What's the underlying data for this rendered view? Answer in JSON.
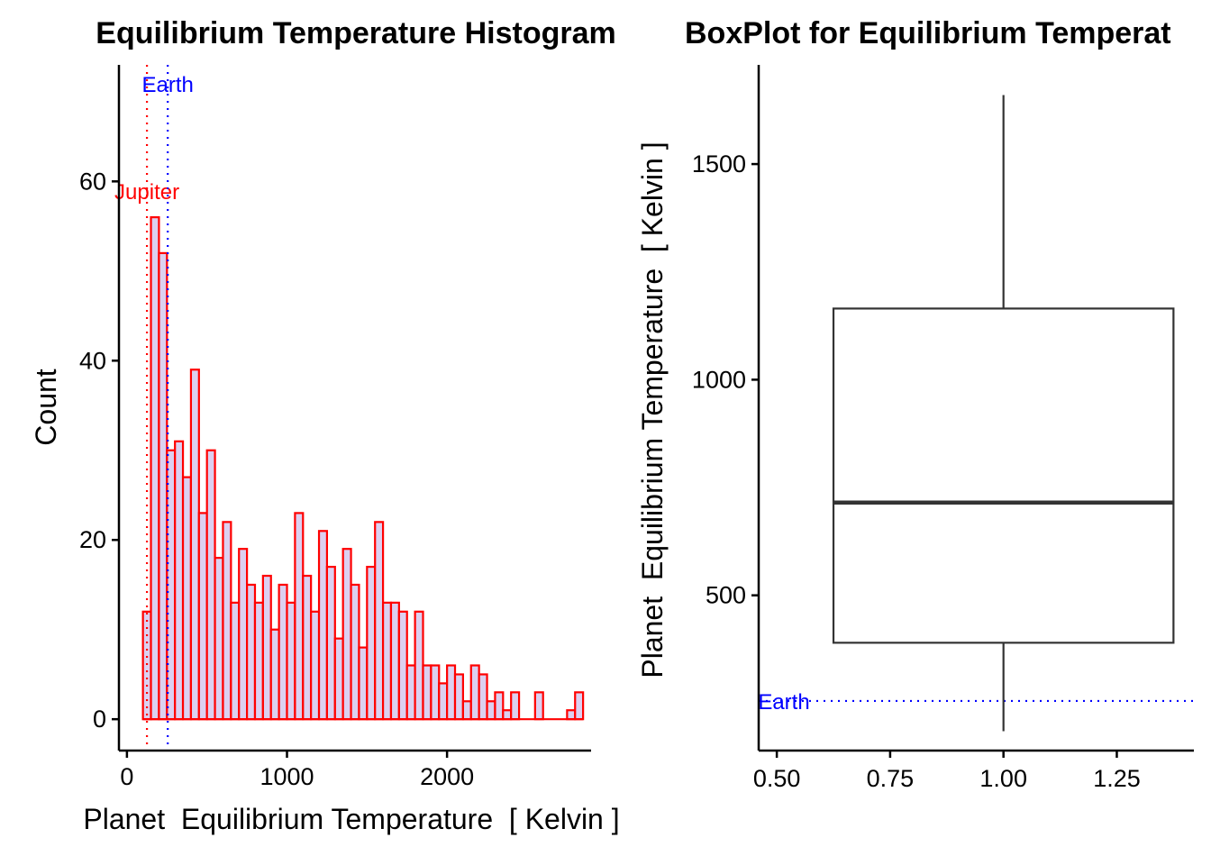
{
  "chart_data": [
    {
      "type": "histogram",
      "title": "Equilibrium Temperature Histogram",
      "xlabel": "Planet  Equilibrium Temperature  [ Kelvin ]",
      "ylabel": "Count",
      "xlim": [
        -50,
        2900
      ],
      "ylim": [
        -3.5,
        73
      ],
      "xticks": [
        0,
        1000,
        2000
      ],
      "yticks": [
        0,
        20,
        40,
        60
      ],
      "bin_start": 100,
      "bin_width": 50,
      "counts": [
        12,
        56,
        52,
        30,
        31,
        27,
        39,
        23,
        30,
        18,
        22,
        13,
        19,
        15,
        13,
        16,
        10,
        15,
        13,
        23,
        16,
        12,
        21,
        17,
        9,
        19,
        15,
        8,
        17,
        22,
        13,
        13,
        12,
        6,
        12,
        6,
        6,
        4,
        6,
        5,
        2,
        6,
        5,
        2,
        3,
        1,
        3,
        0,
        0,
        3,
        0,
        0,
        0,
        1,
        3
      ],
      "bar_fill": "#dcd0f0",
      "bar_edge": "#ff0000",
      "reference_lines": [
        {
          "label": "Jupiter",
          "x": 125,
          "color": "#ff0000",
          "label_y": 58
        },
        {
          "label": "Earth",
          "x": 255,
          "color": "#0000ff",
          "label_y": 70
        }
      ],
      "grid": false
    },
    {
      "type": "boxplot",
      "title": "BoxPlot for Equilibrium Temperat",
      "xlabel": "",
      "ylabel": "Planet  Equilibrium Temperature  [ Kelvin ]",
      "xlim": [
        0.46,
        1.42
      ],
      "ylim": [
        140,
        1730
      ],
      "xticks": [
        "0.50",
        "0.75",
        "1.00",
        "1.25"
      ],
      "xtick_values": [
        0.5,
        0.75,
        1.0,
        1.25
      ],
      "yticks": [
        500,
        1000,
        1500
      ],
      "box": {
        "x": 1.0,
        "width": 0.75,
        "whisker_low": 185,
        "q1": 390,
        "median": 715,
        "q3": 1165,
        "whisker_high": 1660
      },
      "box_color": "#333333",
      "reference_lines": [
        {
          "label": "Earth",
          "y": 255,
          "color": "#0000ff"
        }
      ],
      "grid": false
    }
  ]
}
